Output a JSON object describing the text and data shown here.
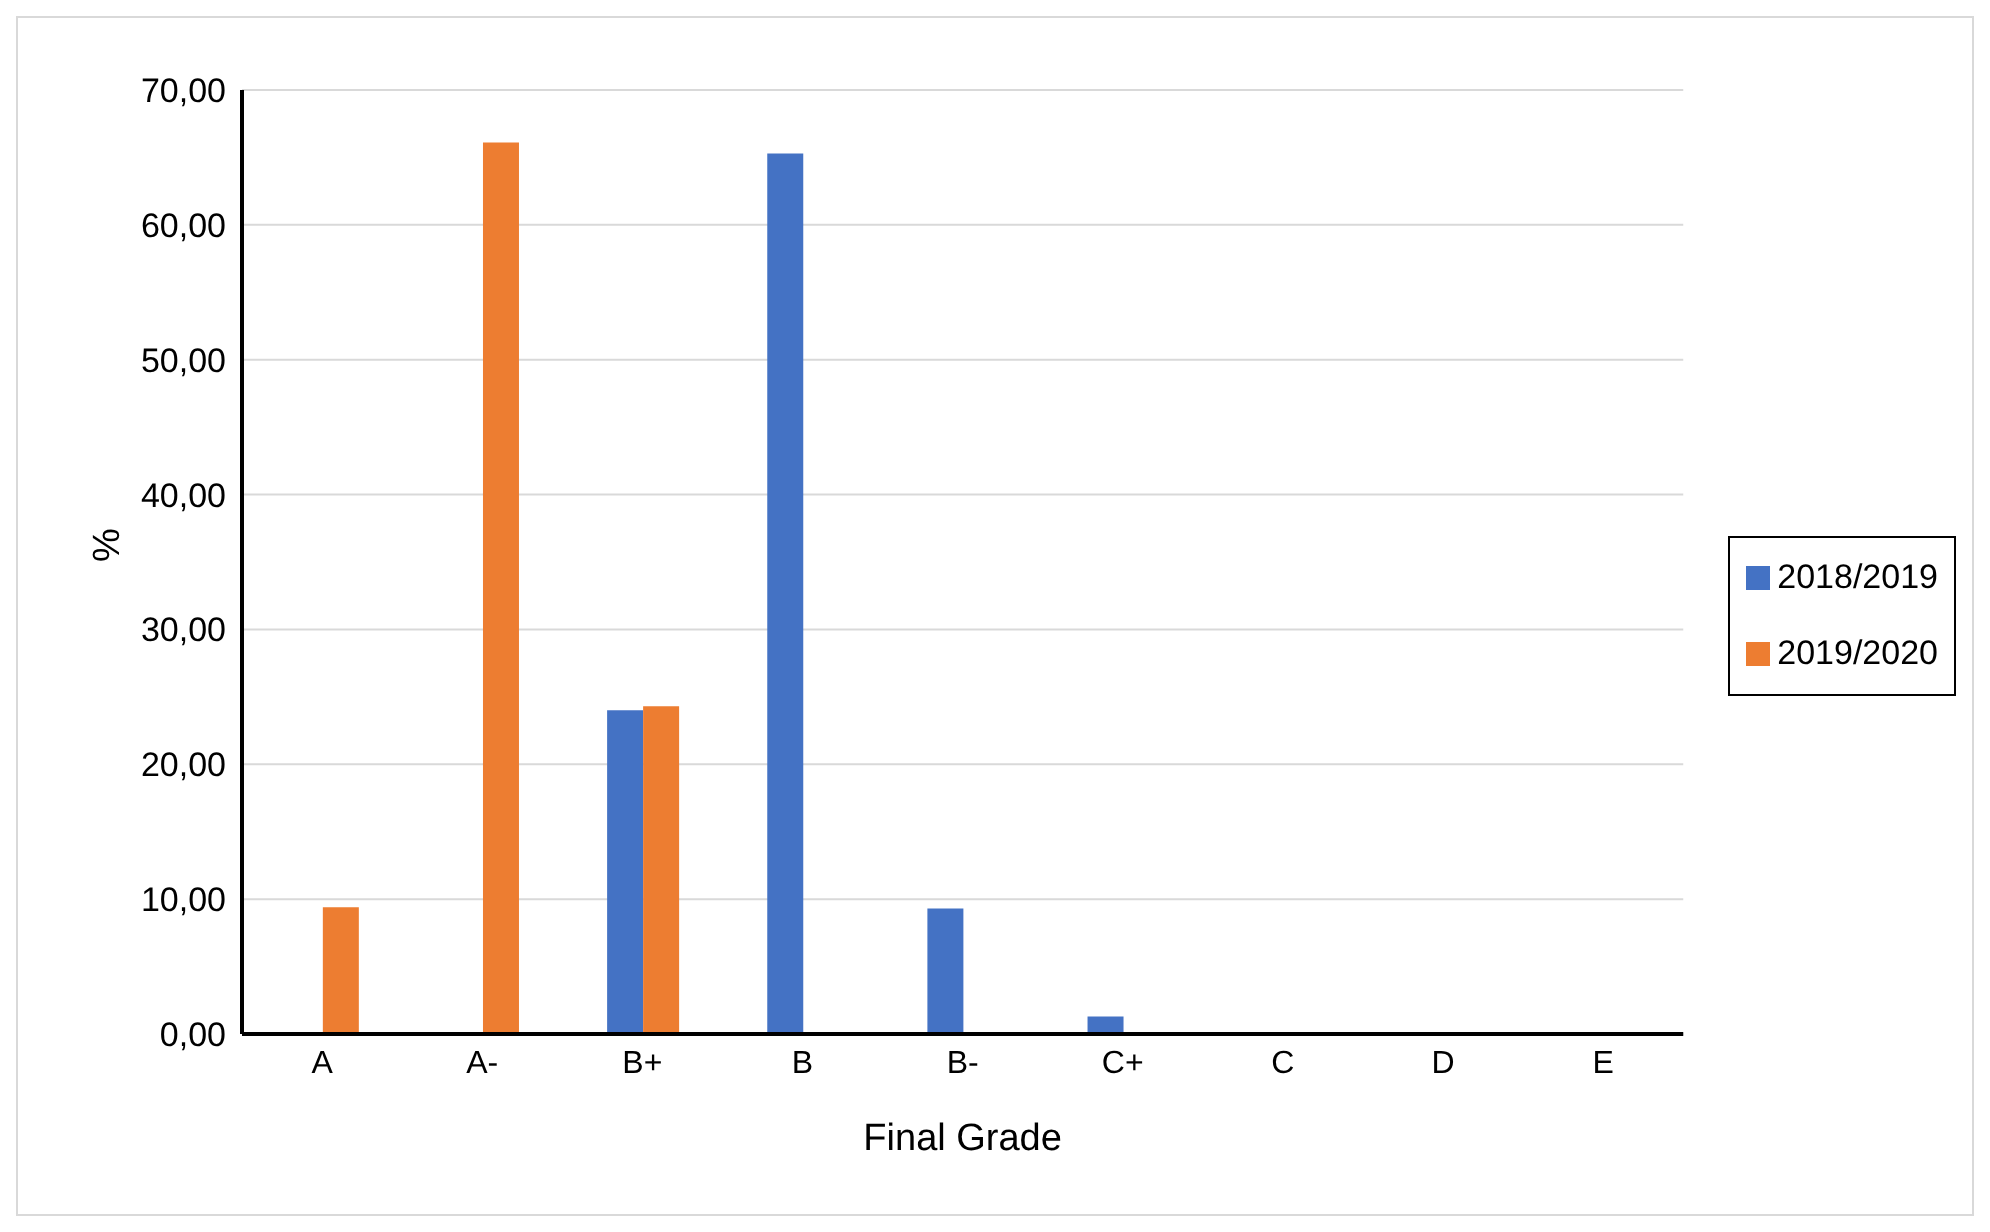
{
  "chart_data": {
    "type": "bar",
    "xlabel": "Final Grade",
    "ylabel": "%",
    "categories": [
      "A",
      "A-",
      "B+",
      "B",
      "B-",
      "C+",
      "C",
      "D",
      "E"
    ],
    "series": [
      {
        "name": "2018/2019",
        "color": "#4472c4",
        "values": [
          0,
          0,
          24.0,
          65.3,
          9.3,
          1.3,
          0,
          0,
          0
        ]
      },
      {
        "name": "2019/2020",
        "color": "#ed7d31",
        "values": [
          9.4,
          66.1,
          24.3,
          0,
          0,
          0,
          0,
          0,
          0
        ]
      }
    ],
    "ylim": [
      0,
      70
    ],
    "yticks": [
      {
        "value": 0,
        "label": "0,00"
      },
      {
        "value": 10,
        "label": "10,00"
      },
      {
        "value": 20,
        "label": "20,00"
      },
      {
        "value": 30,
        "label": "30,00"
      },
      {
        "value": 40,
        "label": "40,00"
      },
      {
        "value": 50,
        "label": "50,00"
      },
      {
        "value": 60,
        "label": "60,00"
      },
      {
        "value": 70,
        "label": "70,00"
      }
    ],
    "grid": "y",
    "legend": "right"
  }
}
